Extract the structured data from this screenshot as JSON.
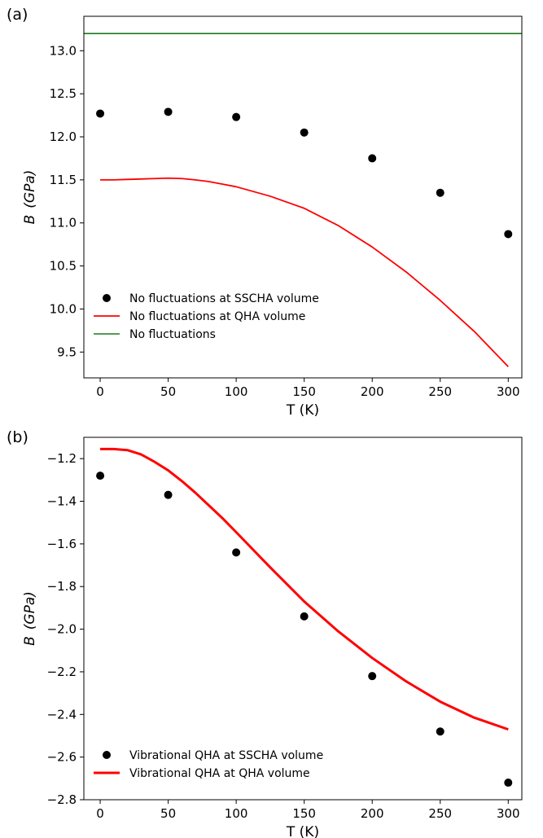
{
  "chart_data": [
    {
      "panel_label": "(a)",
      "type": "line",
      "xlabel": "T (K)",
      "ylabel_main": "B",
      "ylabel_unit": "(GPa)",
      "xlim": [
        -12,
        310
      ],
      "ylim": [
        9.2,
        13.4
      ],
      "xticks": [
        0,
        50,
        100,
        150,
        200,
        250,
        300
      ],
      "yticks": [
        9.5,
        10.0,
        10.5,
        11.0,
        11.5,
        12.0,
        12.5,
        13.0
      ],
      "ytick_decimals": 1,
      "grid": false,
      "legend_position": "lower-left",
      "series": [
        {
          "name": "No fluctuations at SSCHA volume",
          "kind": "scatter",
          "color": "#000000",
          "x": [
            0,
            50,
            100,
            150,
            200,
            250,
            300
          ],
          "y": [
            12.27,
            12.29,
            12.23,
            12.05,
            11.75,
            11.35,
            10.87
          ]
        },
        {
          "name": "No fluctuations at QHA volume",
          "kind": "line",
          "color": "#ff0000",
          "width": 1.8,
          "x": [
            0,
            10,
            20,
            30,
            40,
            50,
            60,
            70,
            80,
            90,
            100,
            125,
            150,
            175,
            200,
            225,
            250,
            275,
            300
          ],
          "y": [
            11.5,
            11.5,
            11.505,
            11.51,
            11.515,
            11.52,
            11.515,
            11.5,
            11.48,
            11.45,
            11.42,
            11.31,
            11.17,
            10.97,
            10.72,
            10.43,
            10.1,
            9.74,
            9.33
          ]
        },
        {
          "name": "No fluctuations",
          "kind": "hline",
          "color": "#1a7a1a",
          "width": 1.6,
          "y": 13.2
        }
      ]
    },
    {
      "panel_label": "(b)",
      "type": "line",
      "xlabel": "T (K)",
      "ylabel_main": "B",
      "ylabel_unit": "(GPa)",
      "xlim": [
        -12,
        310
      ],
      "ylim": [
        -2.8,
        -1.1
      ],
      "xticks": [
        0,
        50,
        100,
        150,
        200,
        250,
        300
      ],
      "yticks": [
        -2.8,
        -2.6,
        -2.4,
        -2.2,
        -2.0,
        -1.8,
        -1.6,
        -1.4,
        -1.2
      ],
      "ytick_decimals": 1,
      "grid": false,
      "legend_position": "lower-left",
      "series": [
        {
          "name": "Vibrational QHA at SSCHA volume",
          "kind": "scatter",
          "color": "#000000",
          "x": [
            0,
            50,
            100,
            150,
            200,
            250,
            300
          ],
          "y": [
            -1.28,
            -1.37,
            -1.64,
            -1.94,
            -2.22,
            -2.48,
            -2.72
          ]
        },
        {
          "name": "Vibrational QHA at QHA volume",
          "kind": "line",
          "color": "#ff0000",
          "width": 3,
          "x": [
            0,
            10,
            20,
            30,
            40,
            50,
            60,
            70,
            80,
            90,
            100,
            125,
            150,
            175,
            200,
            225,
            250,
            275,
            300
          ],
          "y": [
            -1.155,
            -1.155,
            -1.16,
            -1.18,
            -1.215,
            -1.255,
            -1.305,
            -1.36,
            -1.42,
            -1.48,
            -1.545,
            -1.71,
            -1.87,
            -2.01,
            -2.135,
            -2.245,
            -2.34,
            -2.415,
            -2.47
          ]
        }
      ]
    }
  ]
}
